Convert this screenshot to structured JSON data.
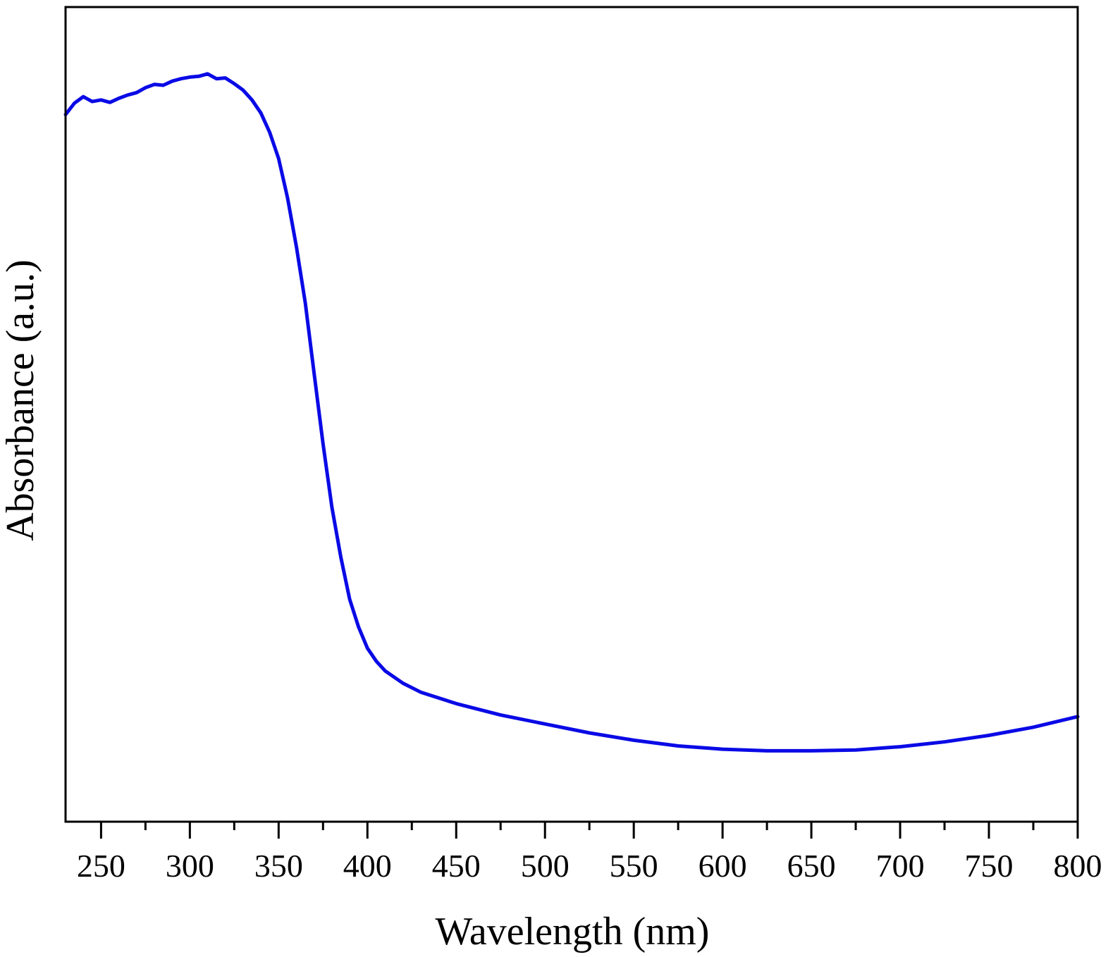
{
  "chart_data": {
    "type": "line",
    "title": "",
    "xlabel": "Wavelength (nm)",
    "ylabel": "Absorbance (a.u.)",
    "xlim": [
      230,
      800
    ],
    "ylim": [
      0,
      1
    ],
    "xticks": [
      250,
      300,
      350,
      400,
      450,
      500,
      550,
      600,
      650,
      700,
      750,
      800
    ],
    "xminor_step": 25,
    "yticks_shown": false,
    "grid": false,
    "legend": "none",
    "line_color": "#0a0ae6",
    "series": [
      {
        "x": [
          230,
          235,
          240,
          245,
          250,
          255,
          260,
          265,
          270,
          275,
          280,
          285,
          290,
          295,
          300,
          305,
          310,
          315,
          320,
          325,
          330,
          335,
          340,
          345,
          350,
          355,
          360,
          365,
          370,
          375,
          380,
          385,
          390,
          395,
          400,
          405,
          410,
          420,
          430,
          450,
          475,
          500,
          525,
          550,
          575,
          600,
          625,
          650,
          675,
          700,
          725,
          750,
          775,
          800
        ],
        "y": [
          0.868,
          0.882,
          0.89,
          0.884,
          0.886,
          0.883,
          0.888,
          0.892,
          0.895,
          0.901,
          0.905,
          0.904,
          0.909,
          0.912,
          0.914,
          0.915,
          0.918,
          0.912,
          0.913,
          0.906,
          0.898,
          0.886,
          0.87,
          0.846,
          0.814,
          0.766,
          0.706,
          0.637,
          0.55,
          0.464,
          0.386,
          0.325,
          0.273,
          0.239,
          0.213,
          0.197,
          0.185,
          0.17,
          0.159,
          0.145,
          0.131,
          0.12,
          0.109,
          0.1,
          0.093,
          0.089,
          0.087,
          0.087,
          0.088,
          0.092,
          0.098,
          0.106,
          0.116,
          0.129
        ]
      }
    ]
  }
}
